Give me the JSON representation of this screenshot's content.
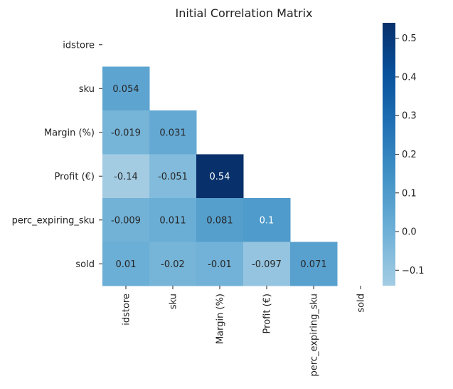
{
  "chart_data": {
    "type": "heatmap",
    "title": "Initial Correlation Matrix",
    "variables": [
      "idstore",
      "sku",
      "Margin (%)",
      "Profit (€)",
      "perc_expiring_sku",
      "sold"
    ],
    "mask": "upper triangle incl. diagonal",
    "cells": [
      {
        "row": "sku",
        "col": "idstore",
        "value": 0.054,
        "label": "0.054"
      },
      {
        "row": "Margin (%)",
        "col": "idstore",
        "value": -0.019,
        "label": "-0.019"
      },
      {
        "row": "Margin (%)",
        "col": "sku",
        "value": 0.031,
        "label": "0.031"
      },
      {
        "row": "Profit (€)",
        "col": "idstore",
        "value": -0.14,
        "label": "-0.14"
      },
      {
        "row": "Profit (€)",
        "col": "sku",
        "value": -0.051,
        "label": "-0.051"
      },
      {
        "row": "Profit (€)",
        "col": "Margin (%)",
        "value": 0.54,
        "label": "0.54"
      },
      {
        "row": "perc_expiring_sku",
        "col": "idstore",
        "value": -0.009,
        "label": "-0.009"
      },
      {
        "row": "perc_expiring_sku",
        "col": "sku",
        "value": 0.011,
        "label": "0.011"
      },
      {
        "row": "perc_expiring_sku",
        "col": "Margin (%)",
        "value": 0.081,
        "label": "0.081"
      },
      {
        "row": "perc_expiring_sku",
        "col": "Profit (€)",
        "value": 0.1,
        "label": "0.1"
      },
      {
        "row": "sold",
        "col": "idstore",
        "value": 0.01,
        "label": "0.01"
      },
      {
        "row": "sold",
        "col": "sku",
        "value": -0.02,
        "label": "-0.02"
      },
      {
        "row": "sold",
        "col": "Margin (%)",
        "value": -0.01,
        "label": "-0.01"
      },
      {
        "row": "sold",
        "col": "Profit (€)",
        "value": -0.097,
        "label": "-0.097"
      },
      {
        "row": "sold",
        "col": "perc_expiring_sku",
        "value": 0.071,
        "label": "0.071"
      }
    ],
    "colorbar": {
      "cmap": "Blues",
      "vmin": -0.14,
      "vmax": 0.54,
      "ticks": [
        0.5,
        0.4,
        0.3,
        0.2,
        0.1,
        0.0,
        -0.1
      ],
      "tick_labels": [
        "0.5",
        "0.4",
        "0.3",
        "0.2",
        "0.1",
        "0.0",
        "−0.1"
      ]
    },
    "colors": {
      "low": "#a0cbe2",
      "high": "#08306b",
      "text_dark": "#262626",
      "text_light": "#ffffff"
    }
  }
}
